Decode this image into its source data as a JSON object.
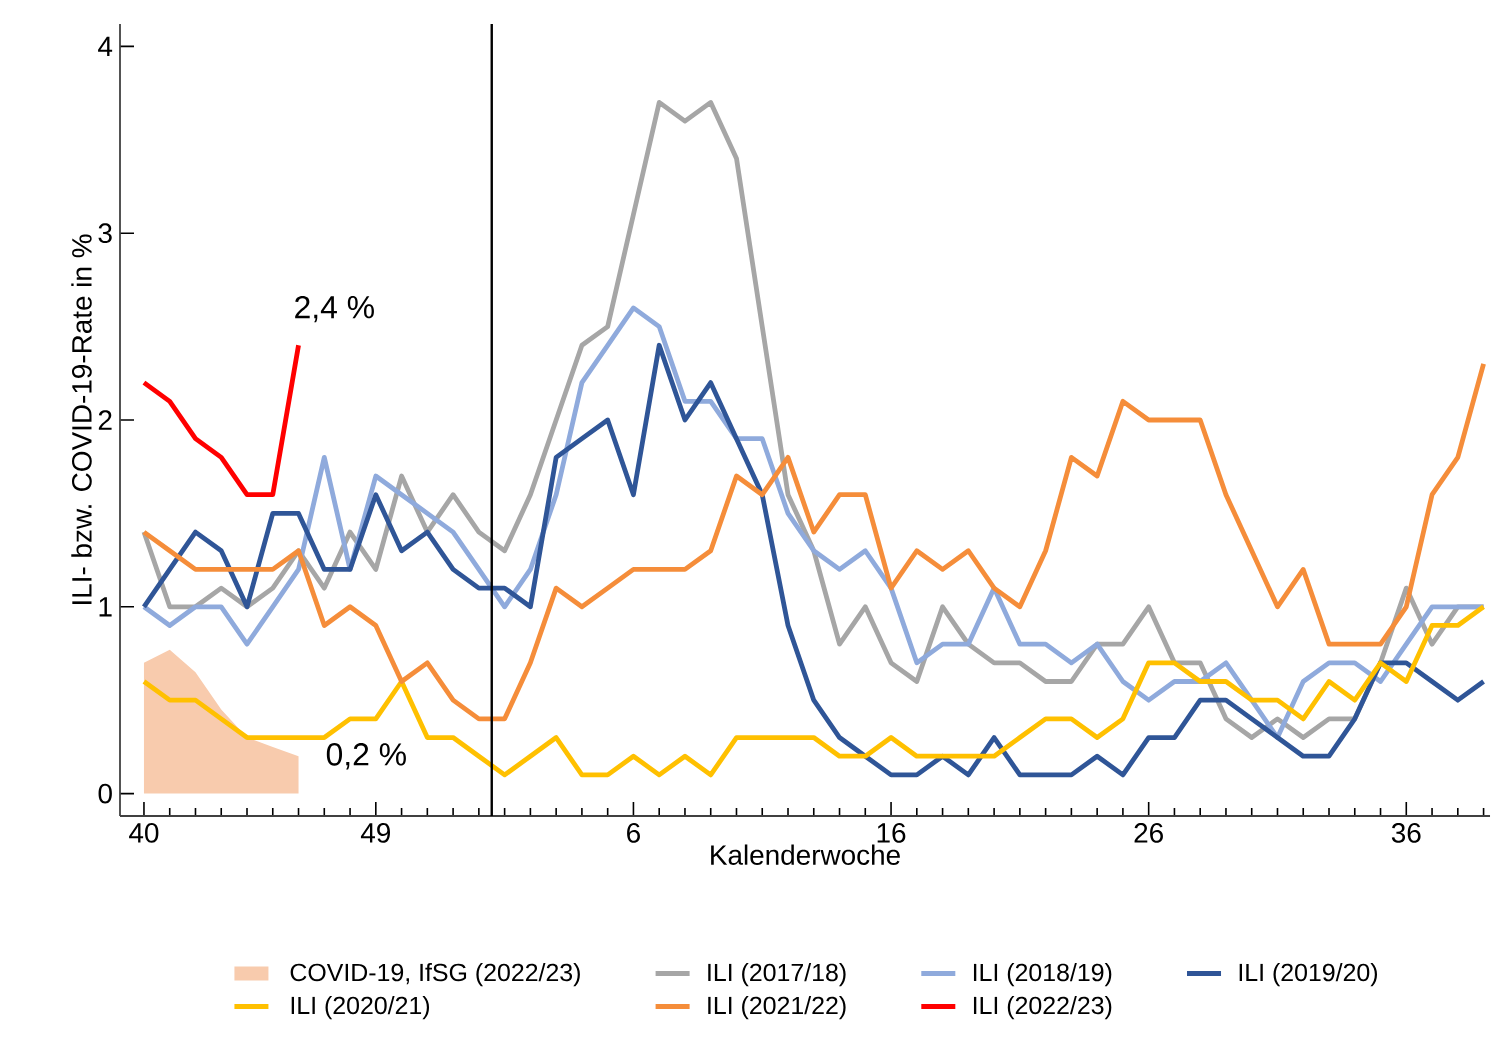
{
  "chart_data": {
    "type": "line",
    "xlabel": "Kalenderwoche",
    "ylabel": "ILI- bzw. COVID-19-Rate in %",
    "categories": [
      "40",
      null,
      null,
      null,
      null,
      null,
      null,
      null,
      null,
      "49",
      null,
      null,
      null,
      null,
      null,
      null,
      null,
      null,
      null,
      "6",
      null,
      null,
      null,
      null,
      null,
      null,
      null,
      null,
      null,
      "16",
      null,
      null,
      null,
      null,
      null,
      null,
      null,
      null,
      null,
      "26",
      null,
      null,
      null,
      null,
      null,
      null,
      null,
      null,
      null,
      "36",
      null,
      null,
      null
    ],
    "ylim": [
      -0.12,
      4.12
    ],
    "yticks": [
      0,
      1,
      2,
      3,
      4
    ],
    "grid": false,
    "legend": "bottom",
    "annotations": [
      "2,4 %",
      "0,2 %"
    ],
    "series": [
      {
        "name": "COVID-19, IfSG (2022/23)",
        "type": "area",
        "color": "#f8cbad",
        "values": [
          0.7,
          0.77,
          0.65,
          0.45,
          0.3,
          0.25,
          0.2,
          null,
          null,
          null,
          null,
          null,
          null,
          null,
          null,
          null,
          null,
          null,
          null,
          null,
          null,
          null,
          null,
          null,
          null,
          null,
          null,
          null,
          null,
          null,
          null,
          null,
          null,
          null,
          null,
          null,
          null,
          null,
          null,
          null,
          null,
          null,
          null,
          null,
          null,
          null,
          null,
          null,
          null,
          null,
          null,
          null,
          null
        ]
      },
      {
        "name": "ILI (2017/18)",
        "color": "#a6a6a6",
        "values": [
          1.4,
          1.0,
          1.0,
          1.1,
          1.0,
          1.1,
          1.3,
          1.1,
          1.4,
          1.2,
          1.7,
          1.4,
          1.6,
          1.4,
          1.3,
          1.6,
          2.0,
          2.4,
          2.5,
          3.1,
          3.7,
          3.6,
          3.7,
          3.4,
          2.5,
          1.6,
          1.3,
          0.8,
          1.0,
          0.7,
          0.6,
          1.0,
          0.8,
          0.7,
          0.7,
          0.6,
          0.6,
          0.8,
          0.8,
          1.0,
          0.7,
          0.7,
          0.4,
          0.3,
          0.4,
          0.3,
          0.4,
          0.4,
          0.7,
          1.1,
          0.8,
          1.0,
          1.0
        ]
      },
      {
        "name": "ILI (2018/19)",
        "color": "#8faadc",
        "values": [
          1.0,
          0.9,
          1.0,
          1.0,
          0.8,
          1.0,
          1.2,
          1.8,
          1.2,
          1.7,
          1.6,
          1.5,
          1.4,
          1.2,
          1.0,
          1.2,
          1.6,
          2.2,
          2.4,
          2.6,
          2.5,
          2.1,
          2.1,
          1.9,
          1.9,
          1.5,
          1.3,
          1.2,
          1.3,
          1.1,
          0.7,
          0.8,
          0.8,
          1.1,
          0.8,
          0.8,
          0.7,
          0.8,
          0.6,
          0.5,
          0.6,
          0.6,
          0.7,
          0.5,
          0.3,
          0.6,
          0.7,
          0.7,
          0.6,
          0.8,
          1.0,
          1.0,
          1.0
        ]
      },
      {
        "name": "ILI (2019/20)",
        "color": "#2f5597",
        "values": [
          1.0,
          1.2,
          1.4,
          1.3,
          1.0,
          1.5,
          1.5,
          1.2,
          1.2,
          1.6,
          1.3,
          1.4,
          1.2,
          1.1,
          1.1,
          1.0,
          1.8,
          1.9,
          2.0,
          1.6,
          2.4,
          2.0,
          2.2,
          1.9,
          1.6,
          0.9,
          0.5,
          0.3,
          0.2,
          0.1,
          0.1,
          0.2,
          0.1,
          0.3,
          0.1,
          0.1,
          0.1,
          0.2,
          0.1,
          0.3,
          0.3,
          0.5,
          0.5,
          0.4,
          0.3,
          0.2,
          0.2,
          0.4,
          0.7,
          0.7,
          0.6,
          0.5,
          0.6
        ]
      },
      {
        "name": "ILI (2020/21)",
        "color": "#ffc000",
        "values": [
          0.6,
          0.5,
          0.5,
          0.4,
          0.3,
          0.3,
          0.3,
          0.3,
          0.4,
          0.4,
          0.6,
          0.3,
          0.3,
          0.2,
          0.1,
          0.2,
          0.3,
          0.1,
          0.1,
          0.2,
          0.1,
          0.2,
          0.1,
          0.3,
          0.3,
          0.3,
          0.3,
          0.2,
          0.2,
          0.3,
          0.2,
          0.2,
          0.2,
          0.2,
          0.3,
          0.4,
          0.4,
          0.3,
          0.4,
          0.7,
          0.7,
          0.6,
          0.6,
          0.5,
          0.5,
          0.4,
          0.6,
          0.5,
          0.7,
          0.6,
          0.9,
          0.9,
          1.0
        ]
      },
      {
        "name": "ILI (2021/22)",
        "color": "#f58d3a",
        "values": [
          1.4,
          1.3,
          1.2,
          1.2,
          1.2,
          1.2,
          1.3,
          0.9,
          1.0,
          0.9,
          0.6,
          0.7,
          0.5,
          0.4,
          0.4,
          0.7,
          1.1,
          1.0,
          1.1,
          1.2,
          1.2,
          1.2,
          1.3,
          1.7,
          1.6,
          1.8,
          1.4,
          1.6,
          1.6,
          1.1,
          1.3,
          1.2,
          1.3,
          1.1,
          1.0,
          1.3,
          1.8,
          1.7,
          2.1,
          2.0,
          2.0,
          2.0,
          1.6,
          1.3,
          1.0,
          1.2,
          0.8,
          0.8,
          0.8,
          1.0,
          1.6,
          1.8,
          2.3
        ]
      },
      {
        "name": "ILI (2022/23)",
        "color": "#ff0000",
        "values": [
          2.2,
          2.1,
          1.9,
          1.8,
          1.6,
          1.6,
          2.4,
          null,
          null,
          null,
          null,
          null,
          null,
          null,
          null,
          null,
          null,
          null,
          null,
          null,
          null,
          null,
          null,
          null,
          null,
          null,
          null,
          null,
          null,
          null,
          null,
          null,
          null,
          null,
          null,
          null,
          null,
          null,
          null,
          null,
          null,
          null,
          null,
          null,
          null,
          null,
          null,
          null,
          null,
          null,
          null,
          null,
          null
        ]
      }
    ]
  }
}
